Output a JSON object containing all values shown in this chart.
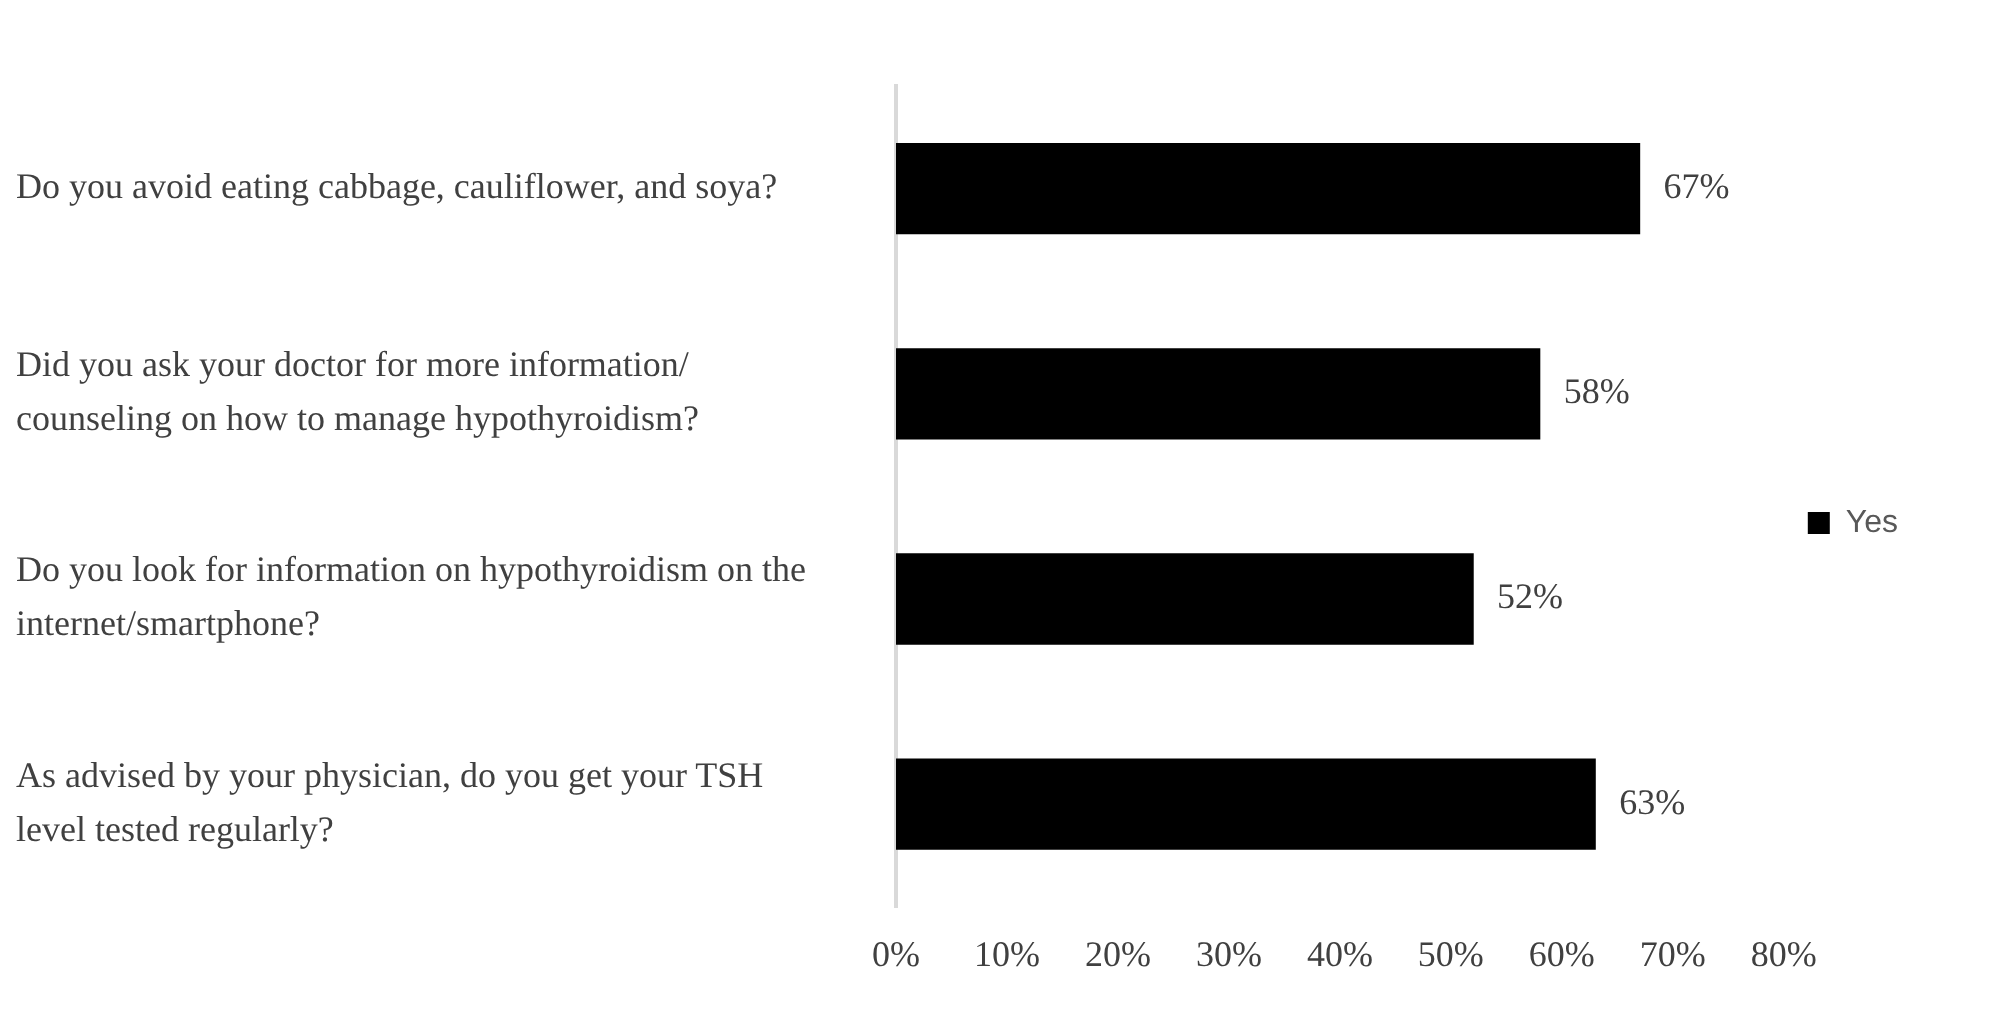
{
  "chart_data": {
    "type": "bar",
    "orientation": "horizontal",
    "categories": [
      "Do you avoid eating cabbage, cauliflower, and soya?",
      "Did you ask your doctor for more information/ counseling on how to manage hypothyroidism?",
      "Do you look for information on hypothyroidism on the internet/smartphone?",
      "As advised by your physician, do you get your TSH level tested regularly?"
    ],
    "series": [
      {
        "name": "Yes",
        "color": "#000000",
        "values": [
          67,
          58,
          52,
          63
        ],
        "value_labels": [
          "67%",
          "58%",
          "52%",
          "63%"
        ]
      }
    ],
    "xlim": [
      0,
      80
    ],
    "xticks": [
      {
        "value": 0,
        "label": "0%"
      },
      {
        "value": 10,
        "label": "10%"
      },
      {
        "value": 20,
        "label": "20%"
      },
      {
        "value": 30,
        "label": "30%"
      },
      {
        "value": 40,
        "label": "40%"
      },
      {
        "value": 50,
        "label": "50%"
      },
      {
        "value": 60,
        "label": "60%"
      },
      {
        "value": 70,
        "label": "70%"
      },
      {
        "value": 80,
        "label": "80%"
      }
    ],
    "grid": false,
    "legend": "right"
  }
}
